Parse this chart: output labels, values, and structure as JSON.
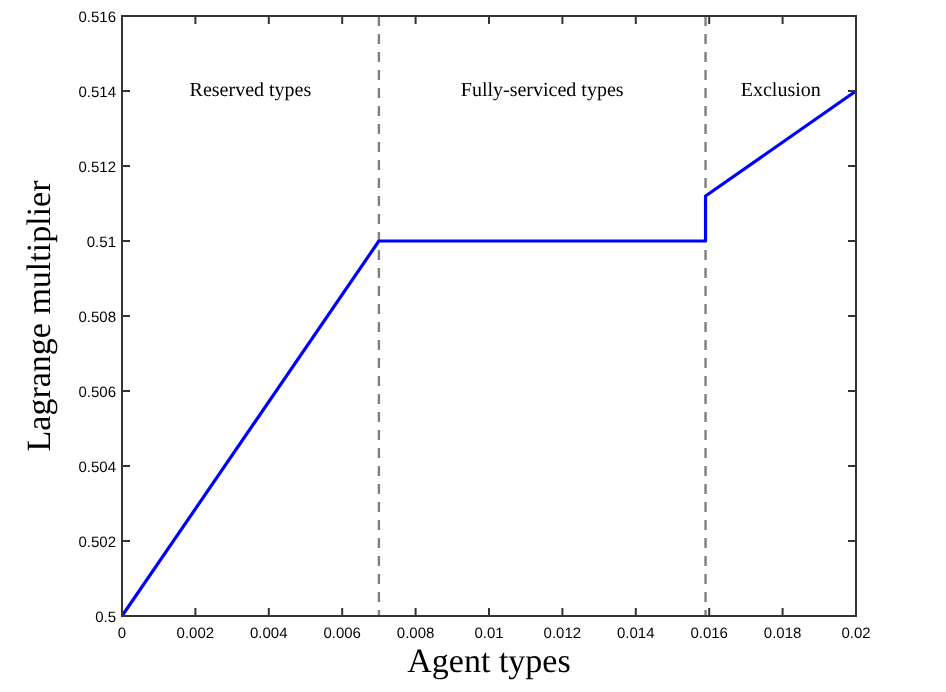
{
  "chart_data": {
    "type": "line",
    "xlabel": "Agent types",
    "ylabel": "Lagrange multiplier",
    "x": [
      0,
      0.007,
      0.0159,
      0.0159,
      0.02
    ],
    "series": [
      {
        "color": "#0000ff",
        "values": [
          0.5,
          0.51,
          0.51,
          0.5112,
          0.514
        ]
      }
    ],
    "xlim": [
      0,
      0.02
    ],
    "xticks": [
      0,
      0.002,
      0.004,
      0.006,
      0.008,
      0.01,
      0.012,
      0.014,
      0.016,
      0.018,
      0.02
    ],
    "ylim": [
      0.5,
      0.516
    ],
    "yticks": [
      0.5,
      0.502,
      0.504,
      0.506,
      0.508,
      0.51,
      0.512,
      0.514,
      0.516
    ],
    "ref_lines": [
      {
        "axis": "x",
        "value": 0.007,
        "color": "#808080",
        "line_style": "dashed"
      },
      {
        "axis": "x",
        "value": 0.0159,
        "color": "#808080",
        "line_style": "dashed"
      }
    ],
    "annotations": [
      "Reserved types",
      "Fully-serviced types",
      "Exclusion"
    ],
    "grid": false,
    "marker": "none",
    "line_style": "solid"
  }
}
